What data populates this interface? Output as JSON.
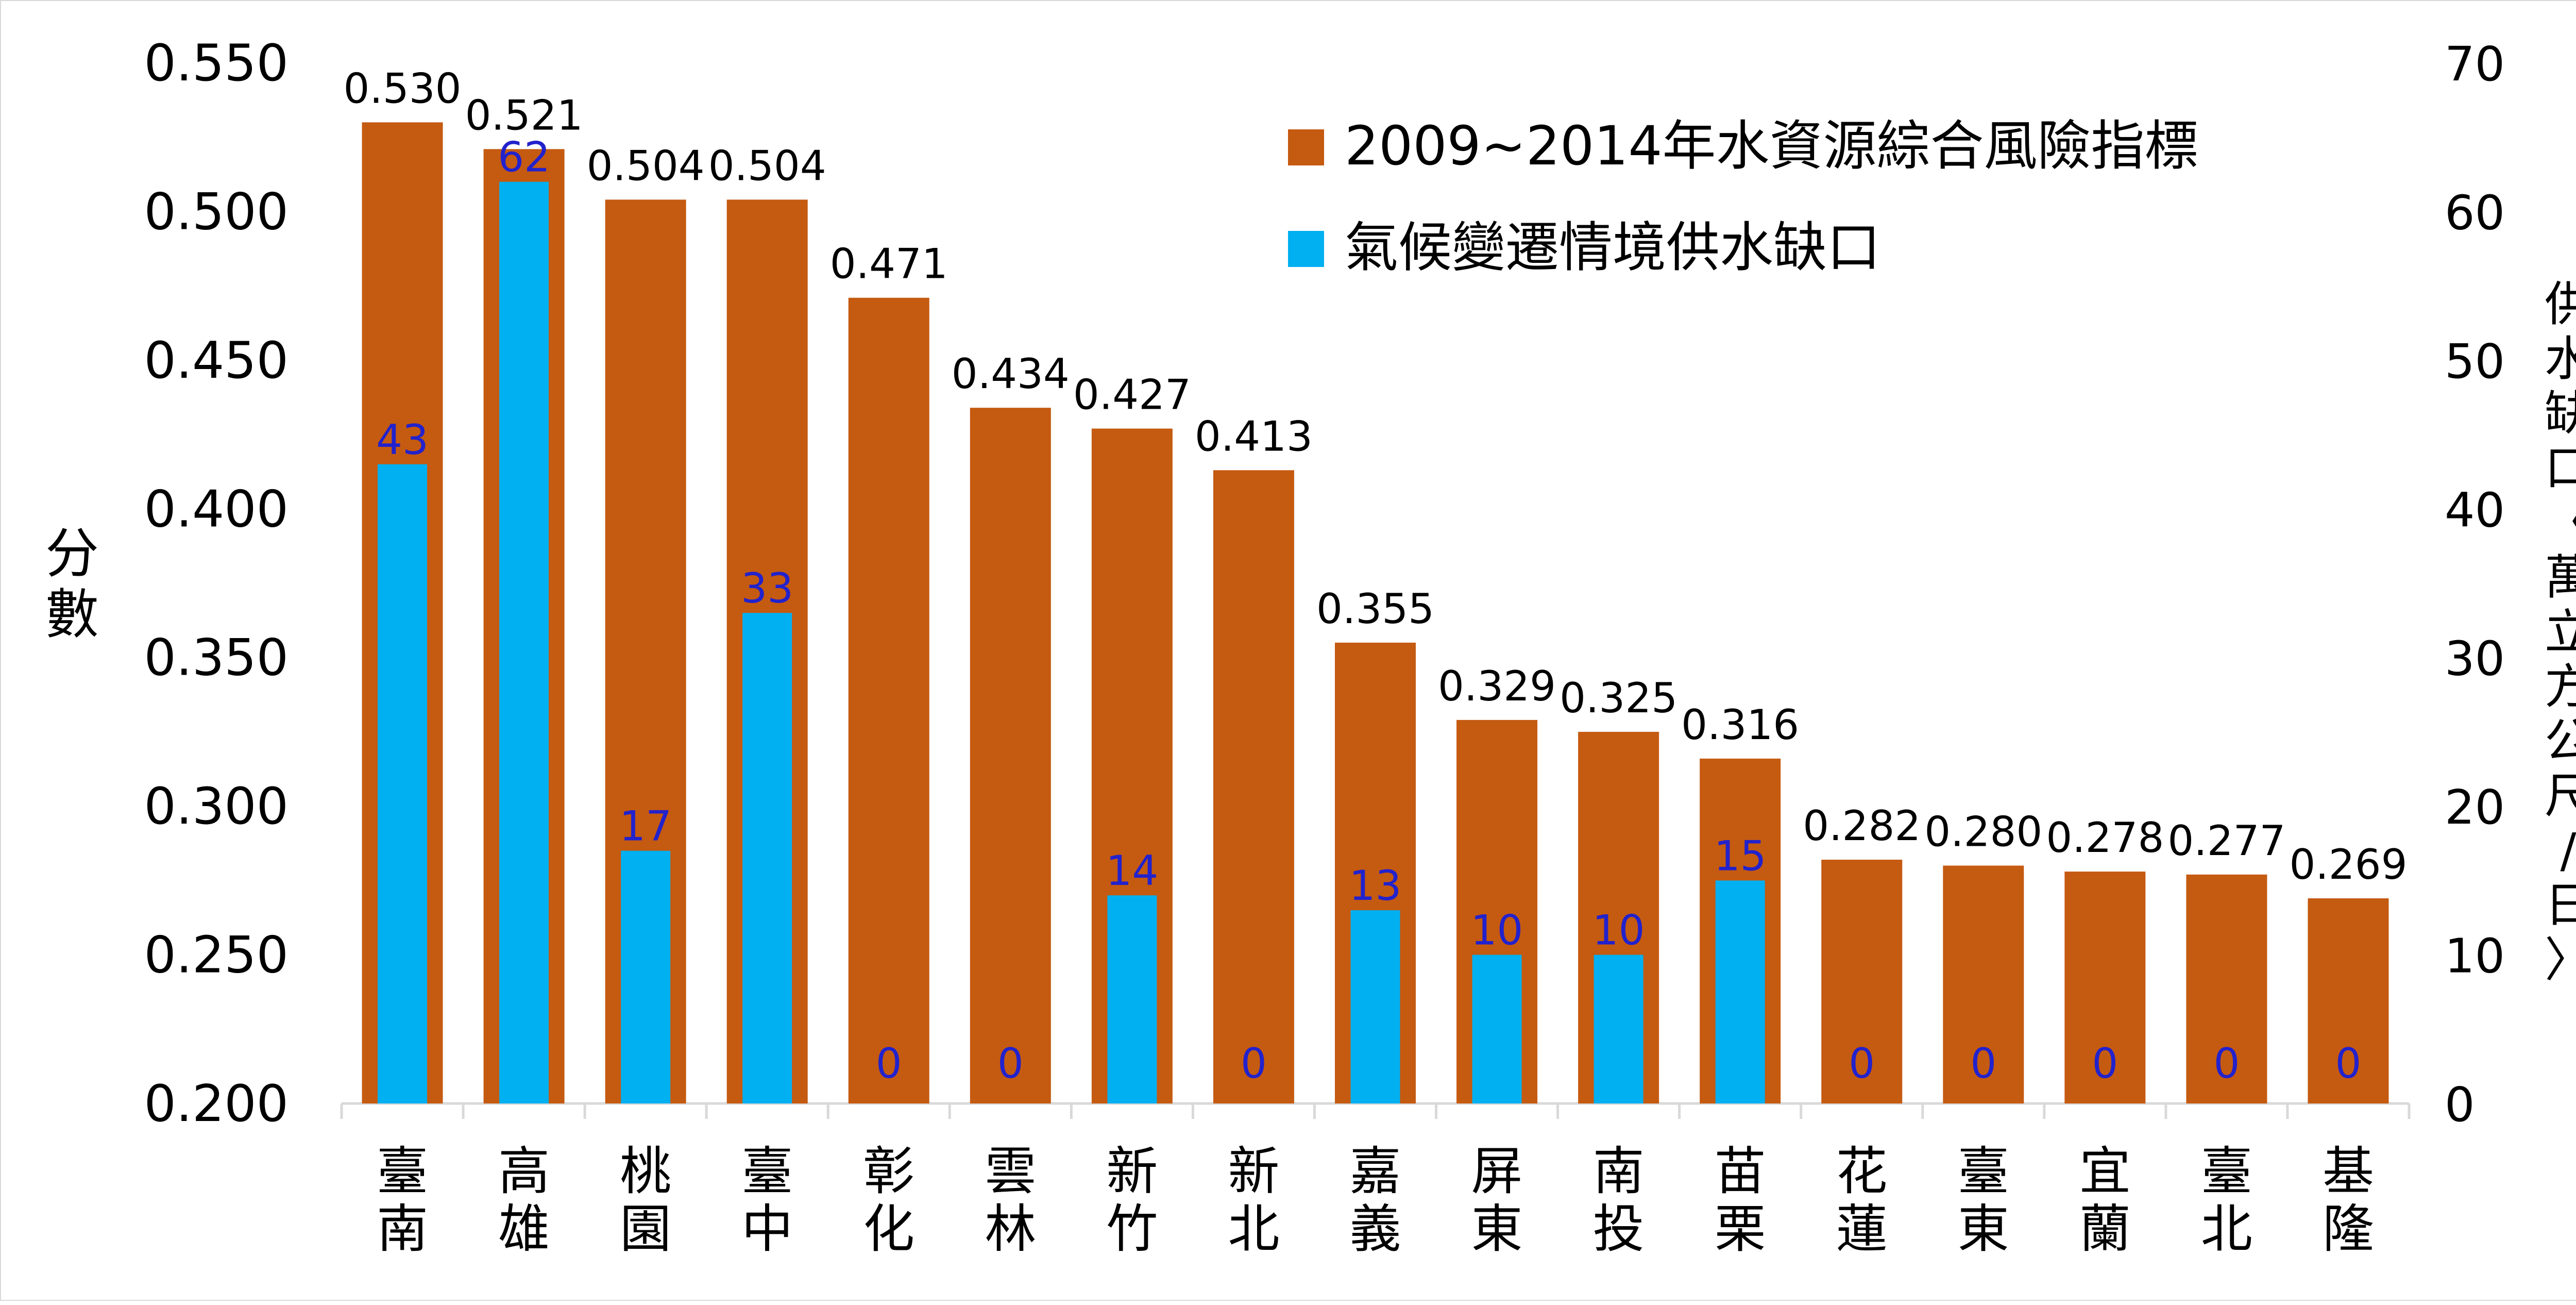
{
  "chart_data": {
    "type": "bar",
    "categories": [
      "臺南",
      "高雄",
      "桃園",
      "臺中",
      "彰化",
      "雲林",
      "新竹",
      "新北",
      "嘉義",
      "屏東",
      "南投",
      "苗栗",
      "花蓮",
      "臺東",
      "宜蘭",
      "臺北",
      "基隆"
    ],
    "series": [
      {
        "name": "2009~2014年水資源綜合風險指標",
        "axis": "left",
        "color": "#C55A11",
        "values": [
          0.53,
          0.521,
          0.504,
          0.504,
          0.471,
          0.434,
          0.427,
          0.413,
          0.355,
          0.329,
          0.325,
          0.316,
          0.282,
          0.28,
          0.278,
          0.277,
          0.269
        ],
        "labels": [
          "0.530",
          "0.521",
          "0.504",
          "0.504",
          "0.471",
          "0.434",
          "0.427",
          "0.413",
          "0.355",
          "0.329",
          "0.325",
          "0.316",
          "0.282",
          "0.280",
          "0.278",
          "0.277",
          "0.269"
        ]
      },
      {
        "name": "氣候變遷情境供水缺口",
        "axis": "right",
        "color": "#00B0F0",
        "label_color": "#2222CC",
        "values": [
          43,
          62,
          17,
          33,
          0,
          0,
          14,
          0,
          13,
          10,
          10,
          15,
          0,
          0,
          0,
          0,
          0
        ],
        "labels": [
          "43",
          "62",
          "17",
          "33",
          "0",
          "0",
          "14",
          "0",
          "13",
          "10",
          "10",
          "15",
          "0",
          "0",
          "0",
          "0",
          "0"
        ]
      }
    ],
    "ylabel": "分數",
    "y2label": "供水缺口〈萬立方公尺/日〉",
    "ylim": [
      0.2,
      0.55
    ],
    "y2lim": [
      0,
      70
    ],
    "yticks": [
      "0.200",
      "0.250",
      "0.300",
      "0.350",
      "0.400",
      "0.450",
      "0.500",
      "0.550"
    ],
    "y2ticks": [
      "0",
      "10",
      "20",
      "30",
      "40",
      "50",
      "60",
      "70"
    ],
    "grid": false,
    "legend_position": "top-right",
    "axis_color": "#d9d9d9",
    "text_color": "#000000"
  }
}
